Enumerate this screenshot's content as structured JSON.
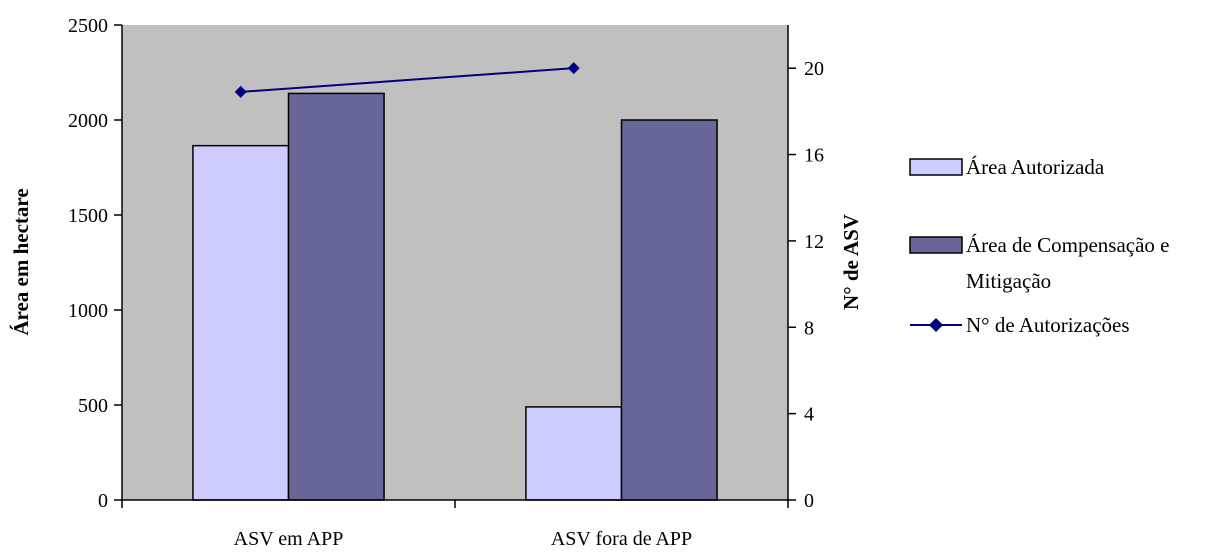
{
  "chart_data": {
    "type": "bar",
    "categories": [
      "ASV em APP",
      "ASV fora de APP"
    ],
    "series": [
      {
        "name": "Área Autorizada",
        "kind": "bar",
        "axis": "left",
        "color": "#CCCCFF",
        "values": [
          1865,
          490
        ]
      },
      {
        "name": "Área de Compensação e Mitigação",
        "kind": "bar",
        "axis": "left",
        "color": "#666699",
        "values": [
          2140,
          2000
        ]
      },
      {
        "name": "N° de Autorizações",
        "kind": "line",
        "axis": "right",
        "color": "#000080",
        "values": [
          18.9,
          20
        ]
      }
    ],
    "ylabel": "Área em hectare",
    "ylim": [
      0,
      2500
    ],
    "yticks": [
      0,
      500,
      1000,
      1500,
      2000,
      2500
    ],
    "y2label": "N° de ASV",
    "y2lim": [
      0,
      22
    ],
    "y2ticks": [
      0,
      4,
      8,
      12,
      16,
      20
    ],
    "plot_background": "#C0C0C0",
    "legend_position": "right"
  },
  "legend": {
    "line1": "Área de Compensação e",
    "line2": "Mitigação"
  }
}
